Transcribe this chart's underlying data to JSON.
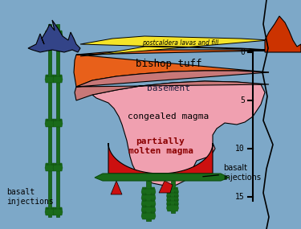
{
  "bg_color": "#7da8c8",
  "colors": {
    "postcaldera": "#f5e428",
    "bishop_tuff": "#e8601a",
    "basement": "#c87878",
    "congealed_magma": "#f0a0b0",
    "partially_molten": "#cc1010",
    "dark_green": "#1a6b1a",
    "dark_green2": "#0d4d0d",
    "red_sill": "#cc2020",
    "blue_mountain": "#334488",
    "red_mountain": "#cc3300",
    "black": "#000000",
    "white_edge": "#ffffff"
  },
  "labels": {
    "postcaldera": "postcaldera lavas and fill",
    "bishop_tuff": "bishop tuff",
    "basement": "basement",
    "congealed_magma": "congealed magma",
    "partially_molten": "partially\nmolten magma",
    "basalt_right": "basalt\ninjections",
    "basalt_left": "basalt\ninjections"
  },
  "scale_ticks": [
    0,
    5,
    10,
    15
  ],
  "figsize": [
    3.75,
    2.85
  ],
  "dpi": 100
}
